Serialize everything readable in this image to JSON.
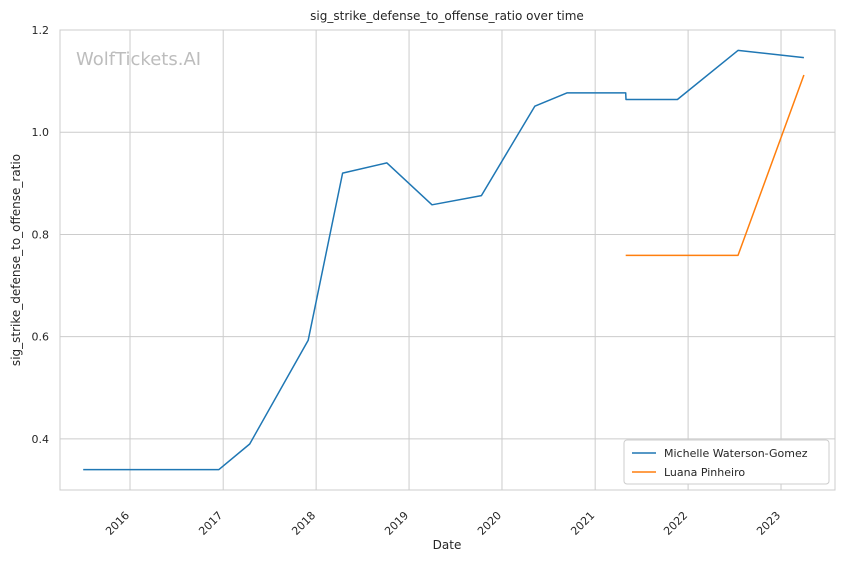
{
  "chart_data": {
    "type": "line",
    "title": "sig_strike_defense_to_offense_ratio over time",
    "xlabel": "Date",
    "ylabel": "sig_strike_defense_to_offense_ratio",
    "x_axis_type": "date",
    "xlim": [
      "2015-04-01",
      "2023-08-01"
    ],
    "ylim": [
      0.3,
      1.2
    ],
    "x_tick_labels": [
      "2016",
      "2017",
      "2018",
      "2019",
      "2020",
      "2021",
      "2022",
      "2023"
    ],
    "y_tick_labels": [
      "0.4",
      "0.6",
      "0.8",
      "1.0",
      "1.2"
    ],
    "y_ticks": [
      0.4,
      0.6,
      0.8,
      1.0,
      1.2
    ],
    "grid": true,
    "legend_position": "lower-right",
    "watermark": "WolfTickets.AI",
    "series": [
      {
        "name": "Michelle Waterson-Gomez",
        "color": "#1f77b4",
        "points": [
          [
            "2015-07-01",
            0.34
          ],
          [
            "2016-12-15",
            0.34
          ],
          [
            "2017-04-15",
            0.39
          ],
          [
            "2017-12-01",
            0.593
          ],
          [
            "2018-04-15",
            0.92
          ],
          [
            "2018-10-06",
            0.94
          ],
          [
            "2019-04-01",
            0.858
          ],
          [
            "2019-10-12",
            0.876
          ],
          [
            "2020-05-09",
            1.051
          ],
          [
            "2020-09-12",
            1.077
          ],
          [
            "2021-05-01",
            1.077
          ],
          [
            "2021-05-02",
            1.064
          ],
          [
            "2021-11-20",
            1.064
          ],
          [
            "2022-07-16",
            1.16
          ],
          [
            "2023-04-01",
            1.146
          ]
        ]
      },
      {
        "name": "Luana Pinheiro",
        "color": "#ff7f0e",
        "points": [
          [
            "2021-05-01",
            0.759
          ],
          [
            "2022-07-16",
            0.759
          ],
          [
            "2023-04-01",
            1.112
          ]
        ]
      }
    ]
  }
}
